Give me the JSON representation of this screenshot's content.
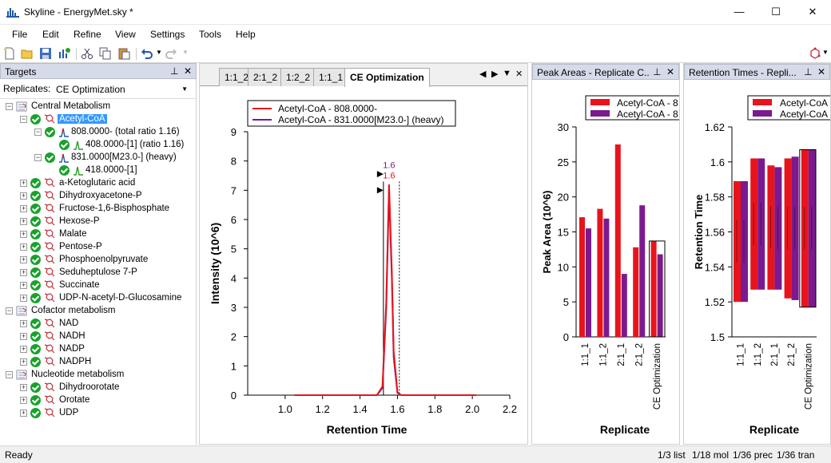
{
  "window": {
    "title": "Skyline - EnergyMet.sky *",
    "minimize": "—",
    "maximize": "☐",
    "close": "✕"
  },
  "menu": [
    "File",
    "Edit",
    "Refine",
    "View",
    "Settings",
    "Tools",
    "Help"
  ],
  "targets_panel": {
    "title": "Targets",
    "pin": "⊥",
    "close": "✕",
    "replicates_label": "Replicates:",
    "replicate_value": "CE Optimization"
  },
  "tree": {
    "groups": [
      {
        "name": "Central Metabolism",
        "molecules": [
          {
            "name": "Acetyl-CoA",
            "selected": true,
            "precursors": [
              {
                "name": "808.0000- (total ratio 1.16)",
                "transitions": [
                  "408.0000-[1] (ratio 1.16)"
                ]
              },
              {
                "name": "831.0000[M23.0-] (heavy)",
                "transitions": [
                  "418.0000-[1]"
                ]
              }
            ]
          },
          {
            "name": "a-Ketoglutaric acid"
          },
          {
            "name": "Dihydroxyacetone-P"
          },
          {
            "name": "Fructose-1,6-Bisphosphate"
          },
          {
            "name": "Hexose-P"
          },
          {
            "name": "Malate"
          },
          {
            "name": "Pentose-P"
          },
          {
            "name": "Phosphoenolpyruvate"
          },
          {
            "name": "Seduheptulose 7-P"
          },
          {
            "name": "Succinate"
          },
          {
            "name": "UDP-N-acetyl-D-Glucosamine"
          }
        ]
      },
      {
        "name": "Cofactor metabolism",
        "molecules": [
          {
            "name": "NAD"
          },
          {
            "name": "NADH"
          },
          {
            "name": "NADP"
          },
          {
            "name": "NADPH"
          }
        ]
      },
      {
        "name": "Nucleotide metabolism",
        "molecules": [
          {
            "name": "Dihydroorotate"
          },
          {
            "name": "Orotate"
          },
          {
            "name": "UDP"
          }
        ]
      }
    ]
  },
  "tabs": [
    "1:1_2",
    "2:1_2",
    "1:2_2",
    "1:1_1",
    "CE Optimization"
  ],
  "active_tab": "CE Optimization",
  "tab_nav": {
    "prev": "◀",
    "next": "▶",
    "menu": "▼",
    "close": "✕"
  },
  "peak_panel": {
    "title": "Peak Areas - Replicate C...",
    "pin": "⊥",
    "close": "✕"
  },
  "rt_panel": {
    "title": "Retention Times - Repli...",
    "pin": "⊥",
    "close": "✕"
  },
  "colors": {
    "light": "#e8141c",
    "heavy": "#7b1a8e",
    "selected": "#3399ff",
    "check": "#1aa12d"
  },
  "chart_data": [
    {
      "type": "line",
      "xlabel": "Retention Time",
      "ylabel": "Intensity (10^6)",
      "xlim": [
        0.8,
        2.2
      ],
      "ylim": [
        0,
        9
      ],
      "xticks": [
        "1.0",
        "1.2",
        "1.4",
        "1.6",
        "1.8",
        "2.0",
        "2.2"
      ],
      "yticks": [
        "0",
        "1",
        "2",
        "3",
        "4",
        "5",
        "6",
        "7",
        "8",
        "9"
      ],
      "legend": [
        "Acetyl-CoA - 808.0000-",
        "Acetyl-CoA - 831.0000[M23.0-] (heavy)"
      ],
      "peak_labels": [
        "1.6",
        "1.6"
      ],
      "series": [
        {
          "name": "Acetyl-CoA - 808.0000-",
          "color": "#e8141c",
          "points": [
            [
              1.05,
              0.0
            ],
            [
              1.49,
              0.0
            ],
            [
              1.52,
              0.3
            ],
            [
              1.54,
              3.2
            ],
            [
              1.555,
              7.2
            ],
            [
              1.57,
              4.2
            ],
            [
              1.58,
              1.5
            ],
            [
              1.6,
              0.1
            ],
            [
              1.62,
              0.0
            ],
            [
              2.02,
              0.0
            ]
          ]
        },
        {
          "name": "Acetyl-CoA - 831.0000[M23.0-] (heavy)",
          "color": "#7b1a8e",
          "points": [
            [
              1.05,
              0.0
            ],
            [
              1.49,
              0.0
            ],
            [
              1.52,
              0.25
            ],
            [
              1.54,
              3.0
            ],
            [
              1.555,
              7.0
            ],
            [
              1.57,
              4.0
            ],
            [
              1.58,
              1.3
            ],
            [
              1.6,
              0.08
            ],
            [
              1.62,
              0.0
            ],
            [
              2.02,
              0.0
            ]
          ]
        }
      ]
    },
    {
      "type": "bar",
      "xlabel": "Replicate",
      "ylabel": "Peak Area (10^6)",
      "ylim": [
        0,
        30
      ],
      "yticks": [
        "0",
        "5",
        "10",
        "15",
        "20",
        "25",
        "30"
      ],
      "categories": [
        "1:1_1",
        "1:1_2",
        "2:1_1",
        "2:1_2",
        "CE Optimization"
      ],
      "legend": [
        "Acetyl-CoA - 8",
        "Acetyl-CoA - 8"
      ],
      "series": [
        {
          "name": "Acetyl-CoA - 8",
          "color": "#e8141c",
          "values": [
            17.1,
            18.3,
            27.5,
            12.8,
            13.7
          ]
        },
        {
          "name": "Acetyl-CoA - 8",
          "color": "#7b1a8e",
          "values": [
            15.5,
            16.9,
            9.0,
            18.8,
            11.8
          ]
        }
      ],
      "highlight": "CE Optimization"
    },
    {
      "type": "bar",
      "xlabel": "Replicate",
      "ylabel": "Retention Time",
      "ylim": [
        1.5,
        1.62
      ],
      "yticks": [
        "1.5",
        "1.52",
        "1.54",
        "1.56",
        "1.58",
        "1.6",
        "1.62"
      ],
      "categories": [
        "1:1_1",
        "1:1_2",
        "2:1_1",
        "2:1_2",
        "CE Optimization"
      ],
      "legend": [
        "Acetyl-CoA",
        "Acetyl-CoA"
      ],
      "series": [
        {
          "name": "Acetyl-CoA",
          "color": "#e8141c",
          "ranges": [
            [
              1.52,
              1.589
            ],
            [
              1.527,
              1.602
            ],
            [
              1.527,
              1.598
            ],
            [
              1.522,
              1.602
            ],
            [
              1.517,
              1.607
            ]
          ]
        },
        {
          "name": "Acetyl-CoA",
          "color": "#7b1a8e",
          "ranges": [
            [
              1.52,
              1.589
            ],
            [
              1.527,
              1.602
            ],
            [
              1.527,
              1.597
            ],
            [
              1.521,
              1.603
            ],
            [
              1.517,
              1.607
            ]
          ]
        }
      ],
      "highlight": "CE Optimization"
    }
  ],
  "status": {
    "left": "Ready",
    "list": "1/3 list",
    "mol": "1/18 mol",
    "prec": "1/36 prec",
    "tran": "1/36 tran"
  }
}
